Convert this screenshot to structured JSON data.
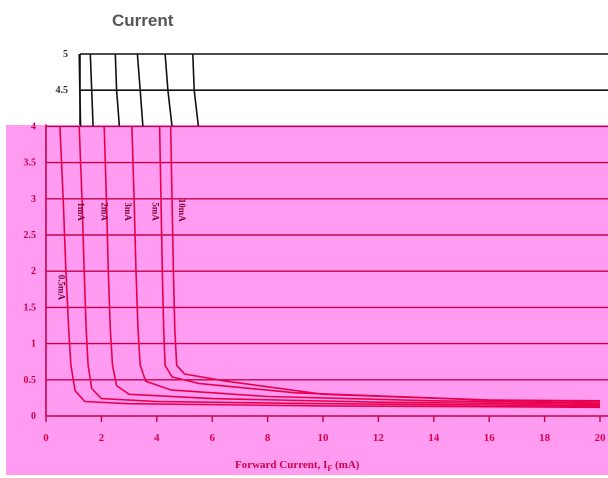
{
  "title": "Current",
  "chart_data": {
    "type": "line",
    "title": "Current",
    "xlabel": "Forward Current, I",
    "xlabel_sub": "F",
    "xlabel_unit": " (mA)",
    "ylabel": "",
    "xlim": [
      0,
      20
    ],
    "ylim": [
      0,
      5
    ],
    "x_ticks": [
      "0",
      "2",
      "4",
      "6",
      "8",
      "10",
      "12",
      "14",
      "16",
      "18",
      "20"
    ],
    "y_ticks": [
      "0",
      "0.5",
      "1",
      "1.5",
      "2",
      "2.5",
      "3",
      "3.5",
      "4"
    ],
    "y_ticks_top": [
      "4.5",
      "5"
    ],
    "grid": true,
    "colors": {
      "plot_bg": "#ff9cf2",
      "grid": "#c8004a",
      "top_grid": "#111111",
      "series": "#e8004f",
      "label": "#d0004a"
    },
    "series": [
      {
        "name": "0.5mA",
        "label_x": 0.45,
        "label_y": 1.95,
        "points": [
          [
            0.5,
            4.0
          ],
          [
            0.62,
            3.0
          ],
          [
            0.72,
            2.0
          ],
          [
            0.82,
            1.2
          ],
          [
            0.9,
            0.7
          ],
          [
            1.05,
            0.35
          ],
          [
            1.4,
            0.2
          ],
          [
            3.0,
            0.17
          ],
          [
            10.0,
            0.14
          ],
          [
            20.0,
            0.12
          ]
        ]
      },
      {
        "name": "1mA",
        "label_x": 1.15,
        "label_y": 2.95,
        "points": [
          [
            1.2,
            4.0
          ],
          [
            1.3,
            3.0
          ],
          [
            1.38,
            2.0
          ],
          [
            1.45,
            1.2
          ],
          [
            1.52,
            0.7
          ],
          [
            1.65,
            0.38
          ],
          [
            2.0,
            0.24
          ],
          [
            4.0,
            0.2
          ],
          [
            10.0,
            0.17
          ],
          [
            20.0,
            0.14
          ]
        ]
      },
      {
        "name": "2mA",
        "label_x": 2.0,
        "label_y": 2.95,
        "points": [
          [
            2.1,
            4.0
          ],
          [
            2.18,
            3.0
          ],
          [
            2.25,
            2.0
          ],
          [
            2.32,
            1.2
          ],
          [
            2.4,
            0.7
          ],
          [
            2.55,
            0.42
          ],
          [
            3.0,
            0.3
          ],
          [
            6.0,
            0.24
          ],
          [
            12.0,
            0.19
          ],
          [
            20.0,
            0.16
          ]
        ]
      },
      {
        "name": "3mA",
        "label_x": 2.85,
        "label_y": 2.95,
        "points": [
          [
            3.1,
            4.0
          ],
          [
            3.18,
            3.0
          ],
          [
            3.25,
            2.0
          ],
          [
            3.32,
            1.2
          ],
          [
            3.4,
            0.7
          ],
          [
            3.6,
            0.48
          ],
          [
            4.5,
            0.36
          ],
          [
            8.0,
            0.27
          ],
          [
            14.0,
            0.21
          ],
          [
            20.0,
            0.18
          ]
        ]
      },
      {
        "name": "5mA",
        "label_x": 3.85,
        "label_y": 2.95,
        "points": [
          [
            4.1,
            4.0
          ],
          [
            4.15,
            3.0
          ],
          [
            4.2,
            2.0
          ],
          [
            4.25,
            1.2
          ],
          [
            4.3,
            0.7
          ],
          [
            4.55,
            0.54
          ],
          [
            5.5,
            0.45
          ],
          [
            9.0,
            0.32
          ],
          [
            16.0,
            0.22
          ],
          [
            20.0,
            0.2
          ]
        ]
      },
      {
        "name": "10mA",
        "label_x": 4.8,
        "label_y": 3.0,
        "points": [
          [
            4.5,
            4.0
          ],
          [
            4.55,
            3.0
          ],
          [
            4.6,
            2.0
          ],
          [
            4.65,
            1.2
          ],
          [
            4.72,
            0.7
          ],
          [
            5.0,
            0.58
          ],
          [
            6.5,
            0.48
          ],
          [
            10.0,
            0.3
          ],
          [
            16.0,
            0.22
          ],
          [
            20.0,
            0.21
          ]
        ]
      }
    ],
    "top_segments": [
      [
        [
          1.2,
          5.0
        ],
        [
          1.22,
          4.5
        ],
        [
          1.25,
          4.0
        ]
      ],
      [
        [
          1.6,
          5.0
        ],
        [
          1.65,
          4.5
        ],
        [
          1.7,
          4.0
        ]
      ],
      [
        [
          2.5,
          5.0
        ],
        [
          2.55,
          4.5
        ],
        [
          2.65,
          4.0
        ]
      ],
      [
        [
          3.3,
          5.0
        ],
        [
          3.4,
          4.5
        ],
        [
          3.5,
          4.0
        ]
      ],
      [
        [
          4.3,
          5.0
        ],
        [
          4.4,
          4.5
        ],
        [
          4.55,
          4.0
        ]
      ],
      [
        [
          5.3,
          5.0
        ],
        [
          5.35,
          4.5
        ],
        [
          5.5,
          4.0
        ]
      ]
    ]
  }
}
